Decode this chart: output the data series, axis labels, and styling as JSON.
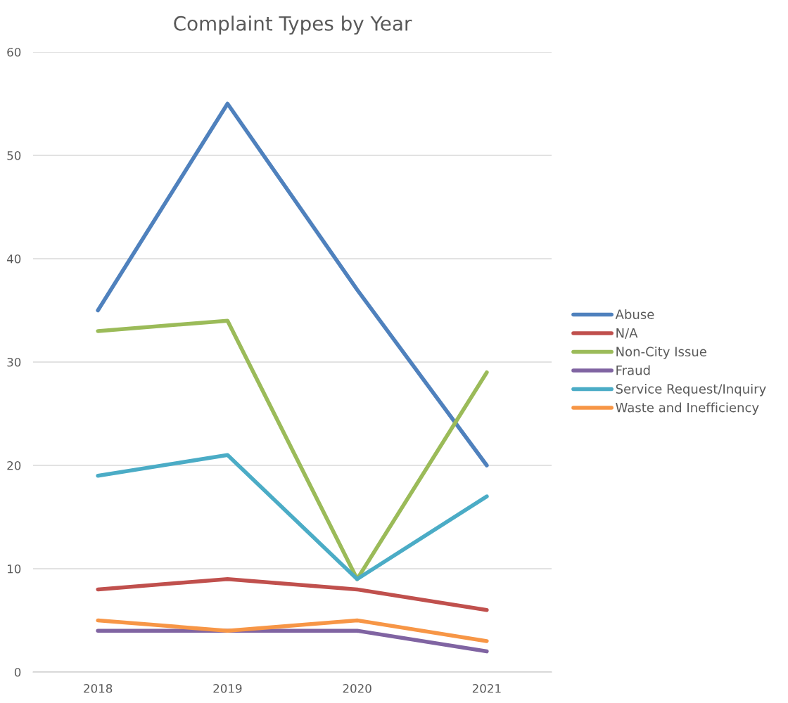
{
  "chart_data": {
    "type": "line",
    "title": "Complaint Types by Year",
    "categories": [
      "2018",
      "2019",
      "2020",
      "2021"
    ],
    "series": [
      {
        "name": "Abuse",
        "color": "#4f81bd",
        "values": [
          35,
          55,
          37,
          20
        ]
      },
      {
        "name": "N/A",
        "color": "#c0504d",
        "values": [
          8,
          9,
          8,
          6
        ]
      },
      {
        "name": "Non-City Issue",
        "color": "#9bbb59",
        "values": [
          33,
          34,
          9,
          29
        ]
      },
      {
        "name": "Fraud",
        "color": "#8064a2",
        "values": [
          4,
          4,
          4,
          2
        ]
      },
      {
        "name": "Service Request/Inquiry",
        "color": "#4bacc6",
        "values": [
          19,
          21,
          9,
          17
        ]
      },
      {
        "name": "Waste and Inefficiency",
        "color": "#f79646",
        "values": [
          5,
          4,
          5,
          3
        ]
      }
    ],
    "ylim": [
      0,
      60
    ],
    "yticks": [
      0,
      10,
      20,
      30,
      40,
      50,
      60
    ],
    "grid": "y",
    "legend": "right",
    "marker": "none",
    "line_style": "solid"
  }
}
